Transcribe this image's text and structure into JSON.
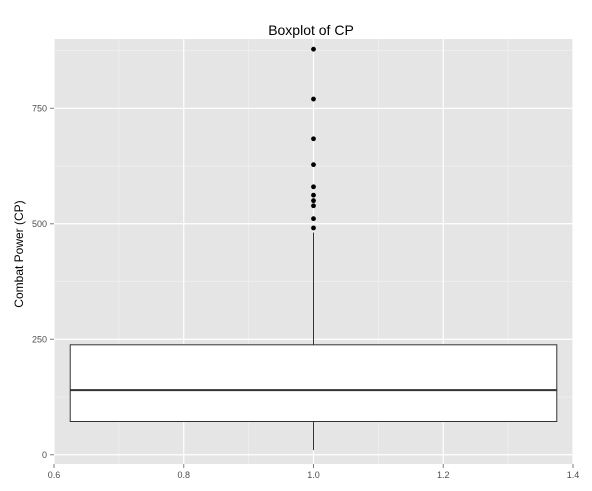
{
  "chart_data": {
    "type": "boxplot",
    "title": "Boxplot of CP",
    "xlabel": "",
    "ylabel": "Combat Power (CP)",
    "xlim": [
      0.6,
      1.4
    ],
    "ylim": [
      0,
      900
    ],
    "x_ticks": [
      "0.6",
      "0.8",
      "1.0",
      "1.2",
      "1.4"
    ],
    "y_ticks": [
      "0",
      "250",
      "500",
      "750"
    ],
    "grid": true,
    "box": {
      "x": 1.0,
      "x_range": [
        0.625,
        1.375
      ],
      "whisker_low": 10,
      "q1": 72,
      "median": 140,
      "q3": 238,
      "whisker_high": 481
    },
    "outliers": [
      491,
      511,
      539,
      550,
      562,
      580,
      628,
      684,
      770,
      878
    ],
    "colors": {
      "panel": "#e5e5e5",
      "grid_major": "#ffffff",
      "grid_minor": "#f2f2f2",
      "box_fill": "#ffffff",
      "line": "#333333",
      "point": "#000000"
    }
  }
}
